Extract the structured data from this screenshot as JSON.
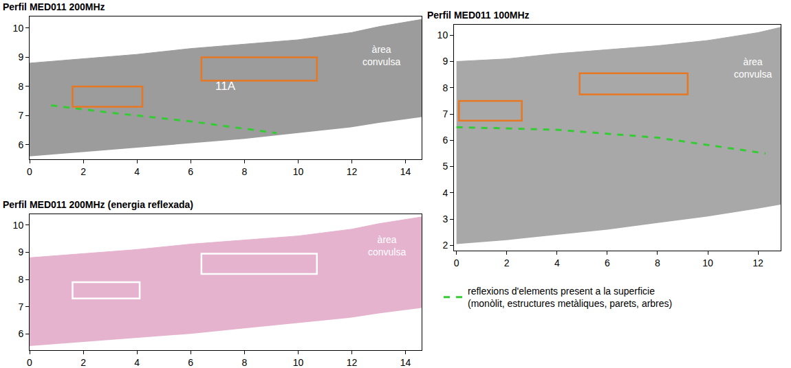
{
  "chart_data": [
    {
      "type": "radargram",
      "title": "Perfil MED011 200MHz",
      "grid": false,
      "legend": "lower right",
      "xlim": [
        0,
        14.6
      ],
      "ylim": [
        5.5,
        10.4
      ],
      "xticks": [
        0,
        2,
        4,
        6,
        8,
        10,
        12,
        14
      ],
      "yticks": [
        6,
        7,
        8,
        9,
        10
      ],
      "profile": {
        "x": [
          0,
          2,
          4,
          6,
          8,
          10,
          12,
          13,
          14.6
        ],
        "top": [
          8.8,
          8.95,
          9.1,
          9.3,
          9.45,
          9.6,
          9.85,
          10.05,
          10.3
        ],
        "base": [
          5.6,
          5.75,
          5.9,
          6.05,
          6.2,
          6.4,
          6.6,
          6.75,
          6.95
        ],
        "color": "#9c9c9c"
      },
      "lines": [
        {
          "name": "reflexions d'elements present a la superficie (monòlit, estructures metàliques, parets, arbres)",
          "x": [
            0.8,
            3,
            6,
            9.2
          ],
          "values": [
            7.35,
            7.1,
            6.8,
            6.4
          ],
          "color": "#33cc33",
          "line_style": "dash"
        }
      ],
      "boxes": [
        {
          "x": [
            1.6,
            4.2
          ],
          "y": [
            7.3,
            8.0
          ],
          "color": "#e87722"
        },
        {
          "x": [
            6.4,
            10.7
          ],
          "y": [
            8.2,
            9.0
          ],
          "color": "#e87722"
        }
      ],
      "annotations": [
        {
          "text": "11A",
          "x": 7.3,
          "y": 8.0,
          "color": "#ffffff"
        },
        {
          "text": "àrea convulsa",
          "x": 13.1,
          "y": 9.05,
          "color": "#ffffff"
        }
      ]
    },
    {
      "type": "radargram",
      "title": "Perfil MED011 200MHz (energia reflexada)",
      "grid": false,
      "xlim": [
        0,
        14.6
      ],
      "ylim": [
        5.4,
        10.4
      ],
      "xticks": [
        0,
        2,
        4,
        6,
        8,
        10,
        12,
        14
      ],
      "yticks": [
        6,
        7,
        8,
        9,
        10
      ],
      "profile": {
        "x": [
          0,
          2,
          4,
          6,
          8,
          10,
          12,
          13,
          14.6
        ],
        "top": [
          8.8,
          8.95,
          9.1,
          9.3,
          9.45,
          9.6,
          9.85,
          10.05,
          10.3
        ],
        "base": [
          5.55,
          5.7,
          5.85,
          6.0,
          6.2,
          6.4,
          6.6,
          6.75,
          6.95
        ],
        "color": "#e6b3cf"
      },
      "lines": [],
      "boxes": [
        {
          "x": [
            1.6,
            4.1
          ],
          "y": [
            7.3,
            7.9
          ],
          "color": "#ffffff"
        },
        {
          "x": [
            6.4,
            10.7
          ],
          "y": [
            8.2,
            8.95
          ],
          "color": "#ffffff"
        }
      ],
      "annotations": [
        {
          "text": "àrea convulsa",
          "x": 13.3,
          "y": 9.25,
          "color": "#ffffff"
        }
      ]
    },
    {
      "type": "radargram",
      "title": "Perfil MED011 100MHz",
      "grid": false,
      "xlim": [
        -0.1,
        12.9
      ],
      "ylim": [
        1.8,
        10.4
      ],
      "xticks": [
        0,
        2,
        4,
        6,
        8,
        10,
        12
      ],
      "yticks": [
        2,
        3,
        4,
        5,
        6,
        7,
        8,
        9,
        10
      ],
      "profile": {
        "x": [
          0,
          2,
          4,
          6,
          8,
          10,
          12,
          12.9
        ],
        "top": [
          9.0,
          9.1,
          9.3,
          9.45,
          9.6,
          9.8,
          10.1,
          10.3
        ],
        "base": [
          2.05,
          2.2,
          2.4,
          2.6,
          2.85,
          3.1,
          3.4,
          3.55
        ],
        "color": "#a8a8a8"
      },
      "lines": [
        {
          "x": [
            0,
            4,
            8,
            12.3
          ],
          "values": [
            6.5,
            6.4,
            6.1,
            5.5
          ],
          "color": "#33cc33",
          "line_style": "dash"
        }
      ],
      "boxes": [
        {
          "x": [
            0.1,
            2.6
          ],
          "y": [
            6.75,
            7.5
          ],
          "color": "#e87722"
        },
        {
          "x": [
            4.9,
            9.2
          ],
          "y": [
            7.75,
            8.55
          ],
          "color": "#e87722"
        }
      ],
      "annotations": [
        {
          "text": "àrea convulsa",
          "x": 11.8,
          "y": 8.75,
          "color": "#ffffff"
        }
      ]
    }
  ]
}
